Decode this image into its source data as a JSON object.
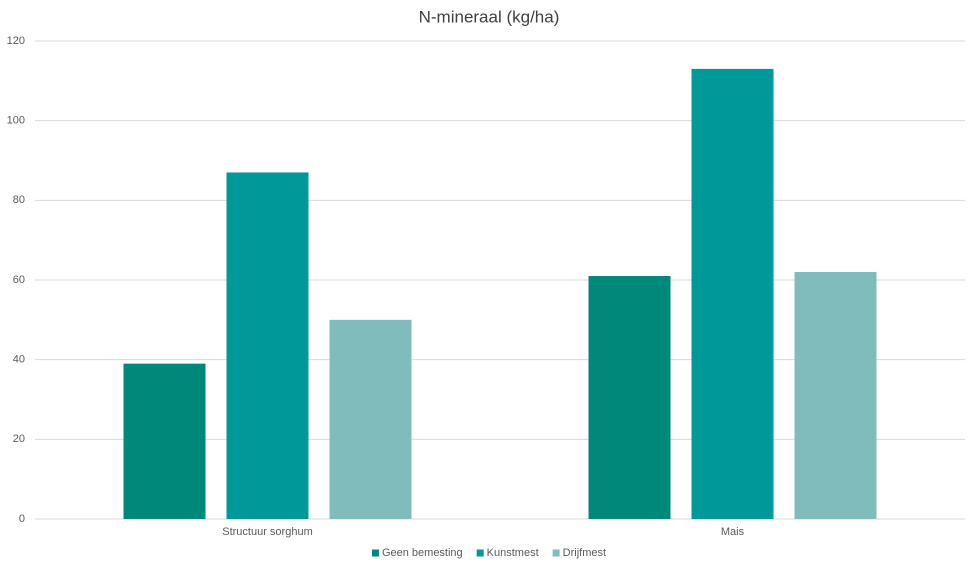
{
  "chart_data": {
    "type": "bar",
    "title": "N-mineraal (kg/ha)",
    "categories": [
      "Structuur sorghum",
      "Mais"
    ],
    "series": [
      {
        "name": "Geen bemesting",
        "color": "#00897b",
        "values": [
          39,
          61
        ]
      },
      {
        "name": "Kunstmest",
        "color": "#009999",
        "values": [
          87,
          113
        ]
      },
      {
        "name": "Drijfmest",
        "color": "#7fbcbb",
        "values": [
          50,
          62
        ]
      }
    ],
    "ylim": [
      0,
      120
    ],
    "yticks": [
      0,
      20,
      40,
      60,
      80,
      100,
      120
    ],
    "grid": true,
    "legend": "bottom"
  }
}
